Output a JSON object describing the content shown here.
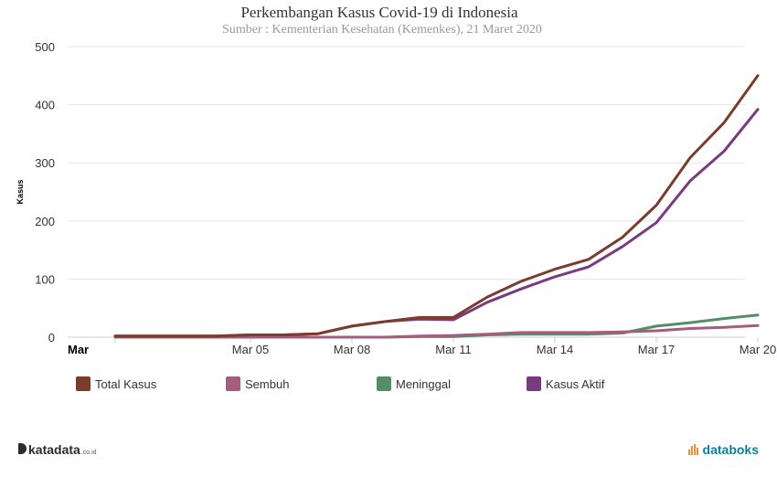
{
  "chart_data": {
    "type": "line",
    "title": "Perkembangan Kasus Covid-19 di Indonesia",
    "subtitle": "Sumber : Kementerian Kesehatan (Kemenkes), 21 Maret 2020",
    "ylabel": "Kasus",
    "xlabel": "",
    "x": [
      "2020-03-02",
      "2020-03-03",
      "2020-03-04",
      "2020-03-05",
      "2020-03-06",
      "2020-03-07",
      "2020-03-08",
      "2020-03-09",
      "2020-03-10",
      "2020-03-11",
      "2020-03-12",
      "2020-03-13",
      "2020-03-14",
      "2020-03-15",
      "2020-03-16",
      "2020-03-17",
      "2020-03-18",
      "2020-03-19",
      "2020-03-20",
      "2020-03-21"
    ],
    "xticks": [
      "Mar",
      "Mar 05",
      "Mar 08",
      "Mar 11",
      "Mar 14",
      "Mar 17",
      "Mar 20"
    ],
    "yticks": [
      "0",
      "100",
      "200",
      "300",
      "400",
      "500"
    ],
    "ylim": [
      0,
      500
    ],
    "grid": true,
    "legend_position": "bottom",
    "series": [
      {
        "name": "Total Kasus",
        "color": "#7b3b2d",
        "values": [
          2,
          2,
          2,
          2,
          4,
          4,
          6,
          19,
          27,
          34,
          34,
          69,
          96,
          117,
          134,
          172,
          227,
          309,
          369,
          450
        ]
      },
      {
        "name": "Sembuh",
        "color": "#a45d7c",
        "values": [
          0,
          0,
          0,
          0,
          0,
          0,
          0,
          0,
          0,
          2,
          3,
          5,
          8,
          8,
          8,
          9,
          11,
          15,
          17,
          20
        ]
      },
      {
        "name": "Meninggal",
        "color": "#548e68",
        "values": [
          0,
          0,
          0,
          0,
          0,
          0,
          0,
          0,
          0,
          1,
          1,
          4,
          5,
          5,
          5,
          7,
          19,
          25,
          32,
          38
        ]
      },
      {
        "name": "Kasus Aktif",
        "color": "#7a3a80",
        "values": [
          2,
          2,
          2,
          2,
          4,
          4,
          6,
          19,
          27,
          31,
          30,
          60,
          83,
          104,
          121,
          156,
          197,
          269,
          320,
          392
        ]
      }
    ]
  },
  "footer": {
    "left_brand": "katadata",
    "left_brand_suffix": ".co.id",
    "right_brand": "databoks"
  }
}
